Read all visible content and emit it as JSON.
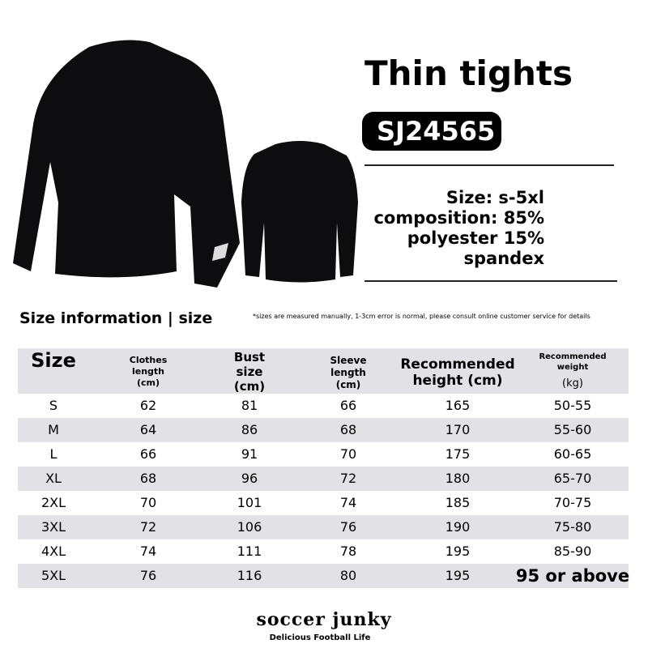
{
  "header": {
    "title": "Thin tights",
    "code": "SJ24565"
  },
  "specs": [
    "Size: s-5xl",
    "composition: 85%",
    "polyester 15%",
    "spandex"
  ],
  "size_section": {
    "title": "Size information | size",
    "note": "*sizes are measured manually, 1-3cm error is normal, please consult online customer service for details"
  },
  "table": {
    "headers": [
      [
        "Size"
      ],
      [
        "Clothes",
        "length",
        "(cm)"
      ],
      [
        "Bust",
        "size",
        "(cm)"
      ],
      [
        "Sleeve",
        "length",
        "(cm)"
      ],
      [
        "Recommended",
        "height (cm)"
      ],
      [
        "Recommended",
        "weight",
        "(kg)"
      ]
    ],
    "rows": [
      [
        "S",
        "62",
        "81",
        "66",
        "165",
        "50-55"
      ],
      [
        "M",
        "64",
        "86",
        "68",
        "170",
        "55-60"
      ],
      [
        "L",
        "66",
        "91",
        "70",
        "175",
        "60-65"
      ],
      [
        "XL",
        "68",
        "96",
        "72",
        "180",
        "65-70"
      ],
      [
        "2XL",
        "70",
        "101",
        "74",
        "185",
        "70-75"
      ],
      [
        "3XL",
        "72",
        "106",
        "76",
        "190",
        "75-80"
      ],
      [
        "4XL",
        "74",
        "111",
        "78",
        "195",
        "85-90"
      ],
      [
        "5XL",
        "76",
        "116",
        "80",
        "195",
        "95 or above"
      ]
    ]
  },
  "brand": {
    "name": "soccer junky",
    "tagline": "Delicious Football Life"
  }
}
